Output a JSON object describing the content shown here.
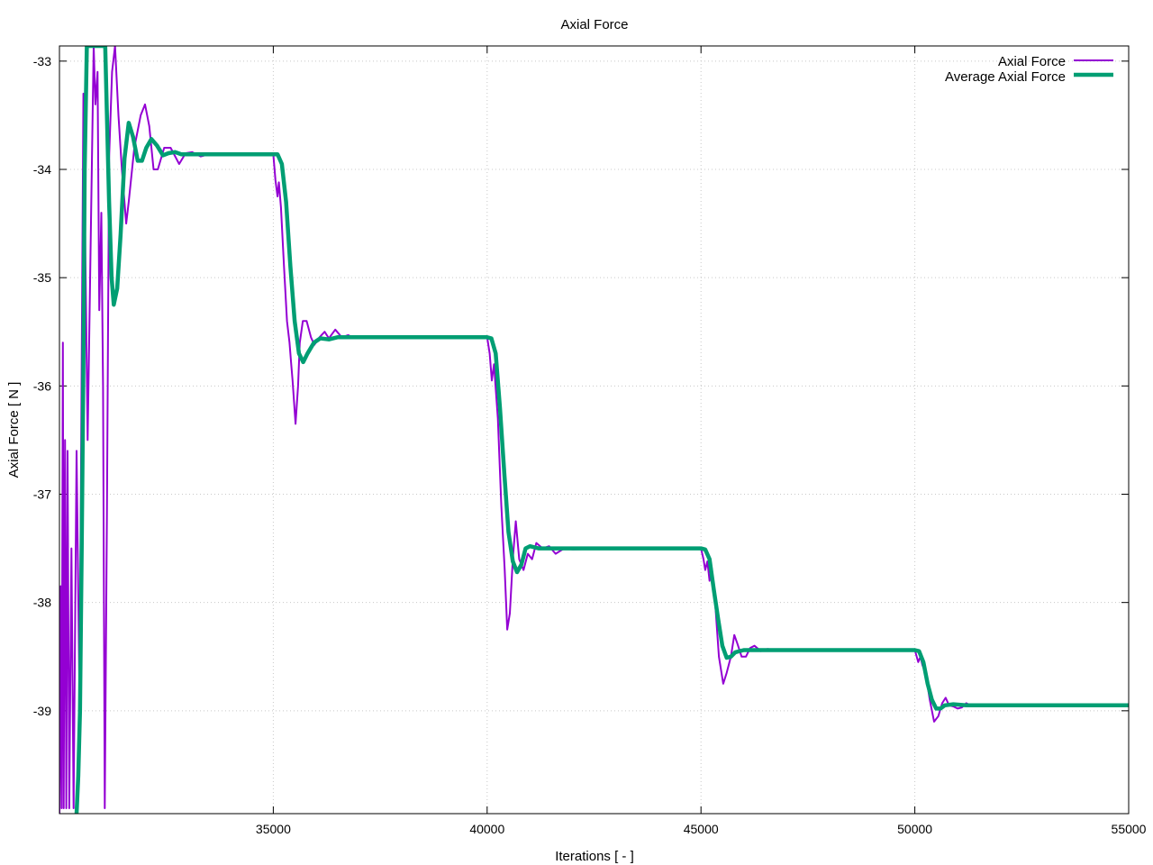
{
  "chart_data": {
    "type": "line",
    "title": "Axial Force",
    "xlabel": "Iterations [ - ]",
    "ylabel": "Axial Force [ N ]",
    "xlim": [
      30000,
      55000
    ],
    "ylim": [
      -39.95,
      -32.86
    ],
    "x_ticks": [
      35000,
      40000,
      45000,
      50000,
      55000
    ],
    "y_ticks": [
      -33,
      -34,
      -35,
      -36,
      -37,
      -38,
      -39
    ],
    "grid": true,
    "legend_position": "top-right",
    "series": [
      {
        "name": "Axial Force",
        "color": "#9400d3",
        "line_width": 2,
        "points": [
          [
            30000,
            -39.95
          ],
          [
            30030,
            -37.85
          ],
          [
            30050,
            -39.9
          ],
          [
            30080,
            -35.6
          ],
          [
            30100,
            -39.9
          ],
          [
            30130,
            -36.5
          ],
          [
            30160,
            -39.9
          ],
          [
            30190,
            -36.6
          ],
          [
            30230,
            -39.9
          ],
          [
            30280,
            -37.5
          ],
          [
            30330,
            -39.9
          ],
          [
            30400,
            -36.6
          ],
          [
            30470,
            -38.9
          ],
          [
            30560,
            -33.3
          ],
          [
            30660,
            -36.5
          ],
          [
            30800,
            -32.86
          ],
          [
            30840,
            -33.4
          ],
          [
            30890,
            -33.1
          ],
          [
            30930,
            -35.3
          ],
          [
            30980,
            -34.4
          ],
          [
            31020,
            -36.0
          ],
          [
            31060,
            -39.9
          ],
          [
            31110,
            -37.2
          ],
          [
            31160,
            -33.9
          ],
          [
            31230,
            -33.1
          ],
          [
            31300,
            -32.86
          ],
          [
            31380,
            -33.5
          ],
          [
            31460,
            -34.0
          ],
          [
            31560,
            -34.5
          ],
          [
            31620,
            -34.3
          ],
          [
            31750,
            -33.8
          ],
          [
            31900,
            -33.5
          ],
          [
            32000,
            -33.4
          ],
          [
            32100,
            -33.6
          ],
          [
            32200,
            -34.0
          ],
          [
            32300,
            -34.0
          ],
          [
            32450,
            -33.8
          ],
          [
            32600,
            -33.8
          ],
          [
            32800,
            -33.95
          ],
          [
            32950,
            -33.85
          ],
          [
            33100,
            -33.84
          ],
          [
            33300,
            -33.88
          ],
          [
            33500,
            -33.86
          ],
          [
            35000,
            -33.86
          ],
          [
            35050,
            -34.1
          ],
          [
            35100,
            -34.25
          ],
          [
            35130,
            -34.12
          ],
          [
            35180,
            -34.35
          ],
          [
            35250,
            -34.9
          ],
          [
            35320,
            -35.4
          ],
          [
            35380,
            -35.6
          ],
          [
            35420,
            -35.8
          ],
          [
            35450,
            -35.95
          ],
          [
            35520,
            -36.35
          ],
          [
            35580,
            -36.0
          ],
          [
            35620,
            -35.6
          ],
          [
            35690,
            -35.4
          ],
          [
            35780,
            -35.4
          ],
          [
            35880,
            -35.55
          ],
          [
            35960,
            -35.62
          ],
          [
            36080,
            -35.55
          ],
          [
            36200,
            -35.5
          ],
          [
            36300,
            -35.56
          ],
          [
            36450,
            -35.48
          ],
          [
            36600,
            -35.55
          ],
          [
            36750,
            -35.53
          ],
          [
            36900,
            -35.56
          ],
          [
            37000,
            -35.55
          ],
          [
            38000,
            -35.55
          ],
          [
            40000,
            -35.55
          ],
          [
            40060,
            -35.7
          ],
          [
            40110,
            -35.95
          ],
          [
            40160,
            -35.8
          ],
          [
            40250,
            -36.3
          ],
          [
            40330,
            -37.1
          ],
          [
            40410,
            -37.7
          ],
          [
            40470,
            -38.25
          ],
          [
            40530,
            -38.1
          ],
          [
            40600,
            -37.6
          ],
          [
            40670,
            -37.25
          ],
          [
            40750,
            -37.6
          ],
          [
            40850,
            -37.7
          ],
          [
            40950,
            -37.55
          ],
          [
            41050,
            -37.6
          ],
          [
            41150,
            -37.45
          ],
          [
            41300,
            -37.5
          ],
          [
            41450,
            -37.48
          ],
          [
            41600,
            -37.55
          ],
          [
            41800,
            -37.5
          ],
          [
            42000,
            -37.51
          ],
          [
            43000,
            -37.5
          ],
          [
            45000,
            -37.5
          ],
          [
            45060,
            -37.6
          ],
          [
            45100,
            -37.7
          ],
          [
            45150,
            -37.62
          ],
          [
            45200,
            -37.8
          ],
          [
            45250,
            -37.68
          ],
          [
            45330,
            -38.0
          ],
          [
            45420,
            -38.5
          ],
          [
            45520,
            -38.75
          ],
          [
            45600,
            -38.65
          ],
          [
            45700,
            -38.5
          ],
          [
            45780,
            -38.3
          ],
          [
            45850,
            -38.38
          ],
          [
            45950,
            -38.5
          ],
          [
            46050,
            -38.5
          ],
          [
            46150,
            -38.42
          ],
          [
            46250,
            -38.4
          ],
          [
            46400,
            -38.45
          ],
          [
            46550,
            -38.43
          ],
          [
            46800,
            -38.44
          ],
          [
            47000,
            -38.44
          ],
          [
            48000,
            -38.44
          ],
          [
            50000,
            -38.44
          ],
          [
            50080,
            -38.55
          ],
          [
            50130,
            -38.5
          ],
          [
            50180,
            -38.58
          ],
          [
            50250,
            -38.65
          ],
          [
            50350,
            -38.9
          ],
          [
            50450,
            -39.1
          ],
          [
            50550,
            -39.05
          ],
          [
            50640,
            -38.93
          ],
          [
            50720,
            -38.88
          ],
          [
            50800,
            -38.95
          ],
          [
            50900,
            -38.96
          ],
          [
            51000,
            -38.98
          ],
          [
            51100,
            -38.97
          ],
          [
            51200,
            -38.93
          ],
          [
            51300,
            -38.95
          ],
          [
            51500,
            -38.94
          ],
          [
            52000,
            -38.95
          ],
          [
            55000,
            -38.95
          ]
        ]
      },
      {
        "name": "Average Axial Force",
        "color": "#009e73",
        "line_width": 4.5,
        "points": [
          [
            30400,
            -39.95
          ],
          [
            30440,
            -39.6
          ],
          [
            30480,
            -39.0
          ],
          [
            30520,
            -37.5
          ],
          [
            30560,
            -35.8
          ],
          [
            30590,
            -34.0
          ],
          [
            30640,
            -32.86
          ],
          [
            31070,
            -32.86
          ],
          [
            31110,
            -33.5
          ],
          [
            31160,
            -34.3
          ],
          [
            31220,
            -35.0
          ],
          [
            31270,
            -35.25
          ],
          [
            31350,
            -35.1
          ],
          [
            31430,
            -34.6
          ],
          [
            31520,
            -33.9
          ],
          [
            31620,
            -33.57
          ],
          [
            31720,
            -33.7
          ],
          [
            31830,
            -33.92
          ],
          [
            31930,
            -33.92
          ],
          [
            32030,
            -33.8
          ],
          [
            32150,
            -33.72
          ],
          [
            32280,
            -33.78
          ],
          [
            32420,
            -33.87
          ],
          [
            32550,
            -33.85
          ],
          [
            32700,
            -33.84
          ],
          [
            32850,
            -33.86
          ],
          [
            33000,
            -33.86
          ],
          [
            34000,
            -33.86
          ],
          [
            35000,
            -33.86
          ],
          [
            35100,
            -33.86
          ],
          [
            35200,
            -33.95
          ],
          [
            35300,
            -34.3
          ],
          [
            35400,
            -34.9
          ],
          [
            35500,
            -35.4
          ],
          [
            35600,
            -35.7
          ],
          [
            35700,
            -35.78
          ],
          [
            35800,
            -35.7
          ],
          [
            35950,
            -35.6
          ],
          [
            36100,
            -35.56
          ],
          [
            36300,
            -35.57
          ],
          [
            36500,
            -35.55
          ],
          [
            37000,
            -35.55
          ],
          [
            40000,
            -35.55
          ],
          [
            40100,
            -35.56
          ],
          [
            40200,
            -35.7
          ],
          [
            40300,
            -36.2
          ],
          [
            40400,
            -36.8
          ],
          [
            40500,
            -37.35
          ],
          [
            40600,
            -37.62
          ],
          [
            40700,
            -37.72
          ],
          [
            40800,
            -37.65
          ],
          [
            40900,
            -37.5
          ],
          [
            41000,
            -37.48
          ],
          [
            41200,
            -37.5
          ],
          [
            41500,
            -37.5
          ],
          [
            42000,
            -37.5
          ],
          [
            45000,
            -37.5
          ],
          [
            45100,
            -37.51
          ],
          [
            45200,
            -37.6
          ],
          [
            45300,
            -37.88
          ],
          [
            45400,
            -38.15
          ],
          [
            45500,
            -38.4
          ],
          [
            45600,
            -38.51
          ],
          [
            45700,
            -38.5
          ],
          [
            45800,
            -38.46
          ],
          [
            46000,
            -38.44
          ],
          [
            46300,
            -38.44
          ],
          [
            47000,
            -38.44
          ],
          [
            50000,
            -38.44
          ],
          [
            50100,
            -38.45
          ],
          [
            50200,
            -38.55
          ],
          [
            50300,
            -38.75
          ],
          [
            50400,
            -38.9
          ],
          [
            50500,
            -38.98
          ],
          [
            50600,
            -38.98
          ],
          [
            50700,
            -38.95
          ],
          [
            50900,
            -38.94
          ],
          [
            51200,
            -38.95
          ],
          [
            52000,
            -38.95
          ],
          [
            55000,
            -38.95
          ]
        ]
      }
    ]
  }
}
